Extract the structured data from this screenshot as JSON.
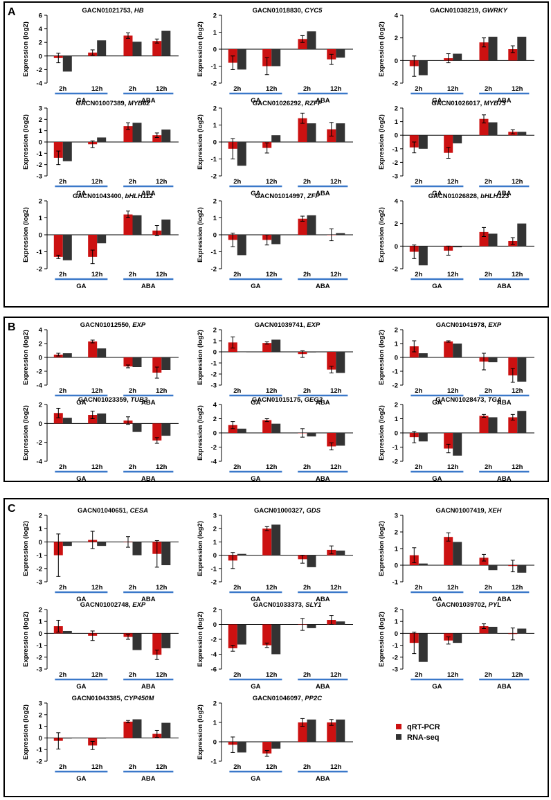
{
  "colors": {
    "qrt": "#cc1111",
    "rna": "#333333",
    "line": "#3a78c9",
    "frame": "#000000"
  },
  "legend": {
    "qrt": "qRT-PCR",
    "rna": "RNA-seq"
  },
  "ylabel": "Expression (log2)",
  "groups": {
    "ga": "GA",
    "aba": "ABA"
  },
  "time_labels": [
    "2h",
    "12h",
    "2h",
    "12h"
  ],
  "panels": [
    {
      "label": "A",
      "row_count": 3
    },
    {
      "label": "B",
      "row_count": 2
    },
    {
      "label": "C",
      "row_count": 3
    }
  ],
  "chart_data": [
    {
      "type": "bar",
      "panel": "A",
      "row": 0,
      "col": 0,
      "id": "GACN01021753",
      "gene": "HB",
      "ylim": [
        -4,
        6
      ],
      "yticks": [
        -4,
        -2,
        0,
        2,
        4,
        6
      ],
      "categories": [
        "GA 2h",
        "GA 12h",
        "ABA 2h",
        "ABA 12h"
      ],
      "series": [
        {
          "name": "qRT-PCR",
          "values": [
            -0.3,
            0.5,
            3,
            2.2
          ],
          "errors": [
            0.7,
            0.4,
            0.4,
            0.3
          ]
        },
        {
          "name": "RNA-seq",
          "values": [
            -2.3,
            2.3,
            2.1,
            3.7
          ]
        }
      ]
    },
    {
      "type": "bar",
      "panel": "A",
      "row": 0,
      "col": 1,
      "id": "GACN01018830",
      "gene": "CYC5",
      "ylim": [
        -2,
        2
      ],
      "yticks": [
        -2,
        -1,
        0,
        1,
        2
      ],
      "categories": [
        "GA 2h",
        "GA 12h",
        "ABA 2h",
        "ABA 12h"
      ],
      "series": [
        {
          "name": "qRT-PCR",
          "values": [
            -0.8,
            -1,
            0.6,
            -0.6
          ],
          "errors": [
            0.4,
            0.5,
            0.2,
            0.3
          ]
        },
        {
          "name": "RNA-seq",
          "values": [
            -1.2,
            -1,
            1.05,
            -0.5
          ]
        }
      ]
    },
    {
      "type": "bar",
      "panel": "A",
      "row": 0,
      "col": 2,
      "id": "GACN01038219",
      "gene": "GWRKY",
      "ylim": [
        -2,
        4
      ],
      "yticks": [
        -2,
        0,
        2,
        4
      ],
      "categories": [
        "GA 2h",
        "GA 12h",
        "ABA 2h",
        "ABA 12h"
      ],
      "series": [
        {
          "name": "qRT-PCR",
          "values": [
            -0.5,
            0.2,
            1.6,
            1
          ],
          "errors": [
            0.9,
            0.4,
            0.4,
            0.3
          ]
        },
        {
          "name": "RNA-seq",
          "values": [
            -1.3,
            0.6,
            2.1,
            2.1
          ]
        }
      ]
    },
    {
      "type": "bar",
      "panel": "A",
      "row": 1,
      "col": 0,
      "id": "GACN01007389",
      "gene": "MYB62",
      "ylim": [
        -3,
        3
      ],
      "yticks": [
        -3,
        -2,
        -1,
        0,
        1,
        2,
        3
      ],
      "categories": [
        "GA 2h",
        "GA 12h",
        "ABA 2h",
        "ABA 12h"
      ],
      "series": [
        {
          "name": "qRT-PCR",
          "values": [
            -1.4,
            -0.2,
            1.4,
            0.6
          ],
          "errors": [
            0.6,
            0.3,
            0.3,
            0.2
          ]
        },
        {
          "name": "RNA-seq",
          "values": [
            -1.7,
            0.4,
            1.7,
            1.1
          ]
        }
      ]
    },
    {
      "type": "bar",
      "panel": "A",
      "row": 1,
      "col": 1,
      "id": "GACN01026292",
      "gene": "RZFP",
      "ylim": [
        -2,
        2
      ],
      "yticks": [
        -2,
        -1,
        0,
        1,
        2
      ],
      "categories": [
        "GA 2h",
        "GA 12h",
        "ABA 2h",
        "ABA 12h"
      ],
      "series": [
        {
          "name": "qRT-PCR",
          "values": [
            -0.4,
            -0.35,
            1.4,
            0.75
          ],
          "errors": [
            0.6,
            0.3,
            0.3,
            0.4
          ]
        },
        {
          "name": "RNA-seq",
          "values": [
            -1.4,
            0.4,
            1.1,
            1.1
          ]
        }
      ]
    },
    {
      "type": "bar",
      "panel": "A",
      "row": 1,
      "col": 2,
      "id": "GACN01026017",
      "gene": "MYB73",
      "ylim": [
        -3,
        2
      ],
      "yticks": [
        -3,
        -2,
        -1,
        0,
        1,
        2
      ],
      "categories": [
        "GA 2h",
        "GA 12h",
        "ABA 2h",
        "ABA 12h"
      ],
      "series": [
        {
          "name": "qRT-PCR",
          "values": [
            -0.9,
            -1.3,
            1.2,
            0.25
          ],
          "errors": [
            0.4,
            0.4,
            0.3,
            0.15
          ]
        },
        {
          "name": "RNA-seq",
          "values": [
            -1,
            -0.6,
            0.95,
            0.25
          ]
        }
      ]
    },
    {
      "type": "bar",
      "panel": "A",
      "row": 2,
      "col": 0,
      "id": "GACN01043400",
      "gene": "bHLH112",
      "ylim": [
        -2,
        2
      ],
      "yticks": [
        -2,
        -1,
        0,
        1,
        2
      ],
      "categories": [
        "GA 2h",
        "GA 12h",
        "ABA 2h",
        "ABA 12h"
      ],
      "series": [
        {
          "name": "qRT-PCR",
          "values": [
            -1.3,
            -1.3,
            1.2,
            0.25
          ],
          "errors": [
            0.1,
            0.4,
            0.2,
            0.3
          ]
        },
        {
          "name": "RNA-seq",
          "values": [
            -1.5,
            -0.5,
            1.15,
            0.9
          ]
        }
      ]
    },
    {
      "type": "bar",
      "panel": "A",
      "row": 2,
      "col": 1,
      "id": "GACN01014997",
      "gene": "ZFP",
      "ylim": [
        -2,
        2
      ],
      "yticks": [
        -2,
        -1,
        0,
        1,
        2
      ],
      "categories": [
        "GA 2h",
        "GA 12h",
        "ABA 2h",
        "ABA 12h"
      ],
      "series": [
        {
          "name": "qRT-PCR",
          "values": [
            -0.3,
            -0.3,
            0.95,
            0
          ],
          "errors": [
            0.4,
            0.3,
            0.15,
            0.35
          ]
        },
        {
          "name": "RNA-seq",
          "values": [
            -1.2,
            -0.55,
            1.15,
            0.1
          ]
        }
      ]
    },
    {
      "type": "bar",
      "panel": "A",
      "row": 2,
      "col": 2,
      "id": "GACN01026828",
      "gene": "bHLH123",
      "ylim": [
        -2,
        4
      ],
      "yticks": [
        -2,
        0,
        2,
        4
      ],
      "categories": [
        "GA 2h",
        "GA 12h",
        "ABA 2h",
        "ABA 12h"
      ],
      "series": [
        {
          "name": "qRT-PCR",
          "values": [
            -0.5,
            -0.4,
            1.25,
            0.45
          ],
          "errors": [
            0.6,
            0.4,
            0.4,
            0.3
          ]
        },
        {
          "name": "RNA-seq",
          "values": [
            -1.7,
            -0.1,
            1.1,
            2
          ]
        }
      ]
    },
    {
      "type": "bar",
      "panel": "B",
      "row": 0,
      "col": 0,
      "id": "GACN01012550",
      "gene": "EXP",
      "ylim": [
        -4,
        4
      ],
      "yticks": [
        -4,
        -2,
        0,
        2,
        4
      ],
      "categories": [
        "GA 2h",
        "GA 12h",
        "ABA 2h",
        "ABA 12h"
      ],
      "series": [
        {
          "name": "qRT-PCR",
          "values": [
            0.4,
            2.3,
            -1.3,
            -2.2
          ],
          "errors": [
            0.2,
            0.2,
            0.2,
            0.8
          ]
        },
        {
          "name": "RNA-seq",
          "values": [
            0.6,
            1.3,
            -1.4,
            -1.8
          ]
        }
      ]
    },
    {
      "type": "bar",
      "panel": "B",
      "row": 0,
      "col": 1,
      "id": "GACN01039741",
      "gene": "EXP",
      "ylim": [
        -3,
        2
      ],
      "yticks": [
        -3,
        -2,
        -1,
        0,
        1,
        2
      ],
      "categories": [
        "GA 2h",
        "GA 12h",
        "ABA 2h",
        "ABA 12h"
      ],
      "series": [
        {
          "name": "qRT-PCR",
          "values": [
            0.85,
            0.8,
            -0.2,
            -1.6
          ],
          "errors": [
            0.5,
            0.1,
            0.3,
            0.3
          ]
        },
        {
          "name": "RNA-seq",
          "values": [
            0,
            1.1,
            -0.05,
            -1.9
          ]
        }
      ]
    },
    {
      "type": "bar",
      "panel": "B",
      "row": 0,
      "col": 2,
      "id": "GACN01041978",
      "gene": "EXP",
      "ylim": [
        -2,
        2
      ],
      "yticks": [
        -2,
        -1,
        0,
        1,
        2
      ],
      "categories": [
        "GA 2h",
        "GA 12h",
        "ABA 2h",
        "ABA 12h"
      ],
      "series": [
        {
          "name": "qRT-PCR",
          "values": [
            0.8,
            1.15,
            -0.3,
            -1.3
          ],
          "errors": [
            0.4,
            0.05,
            0.6,
            0.5
          ]
        },
        {
          "name": "RNA-seq",
          "values": [
            0.3,
            1,
            -0.35,
            -1.75
          ]
        }
      ]
    },
    {
      "type": "bar",
      "panel": "B",
      "row": 1,
      "col": 0,
      "id": "GACN01023359",
      "gene": "TUB2",
      "ylim": [
        -4,
        2
      ],
      "yticks": [
        -4,
        -2,
        0,
        2
      ],
      "categories": [
        "GA 2h",
        "GA 12h",
        "ABA 2h",
        "ABA 12h"
      ],
      "series": [
        {
          "name": "qRT-PCR",
          "values": [
            1.1,
            0.9,
            0.3,
            -1.8
          ],
          "errors": [
            0.5,
            0.4,
            0.4,
            0.3
          ]
        },
        {
          "name": "RNA-seq",
          "values": [
            0.6,
            1.05,
            -0.9,
            -1.3
          ]
        }
      ]
    },
    {
      "type": "bar",
      "panel": "B",
      "row": 1,
      "col": 1,
      "id": "GACN01015175",
      "gene": "GEG2",
      "ylim": [
        -4,
        4
      ],
      "yticks": [
        -4,
        -2,
        0,
        2,
        4
      ],
      "categories": [
        "GA 2h",
        "GA 12h",
        "ABA 2h",
        "ABA 12h"
      ],
      "series": [
        {
          "name": "qRT-PCR",
          "values": [
            1.1,
            1.8,
            0,
            -1.9
          ],
          "errors": [
            0.5,
            0.2,
            0.6,
            0.5
          ]
        },
        {
          "name": "RNA-seq",
          "values": [
            0.6,
            1.3,
            -0.5,
            -1.8
          ]
        }
      ]
    },
    {
      "type": "bar",
      "panel": "B",
      "row": 1,
      "col": 2,
      "id": "GACN01028473",
      "gene": "TGA",
      "ylim": [
        -2,
        2
      ],
      "yticks": [
        -2,
        -1,
        0,
        1,
        2
      ],
      "categories": [
        "GA 2h",
        "GA 12h",
        "ABA 2h",
        "ABA 12h"
      ],
      "series": [
        {
          "name": "qRT-PCR",
          "values": [
            -0.3,
            -1.1,
            1.2,
            1.1
          ],
          "errors": [
            0.4,
            0.3,
            0.1,
            0.2
          ]
        },
        {
          "name": "RNA-seq",
          "values": [
            -0.6,
            -1.6,
            1.1,
            1.55
          ]
        }
      ]
    },
    {
      "type": "bar",
      "panel": "C",
      "row": 0,
      "col": 0,
      "id": "GACN01040651",
      "gene": "CESA",
      "ylim": [
        -3,
        2
      ],
      "yticks": [
        -3,
        -2,
        -1,
        0,
        1,
        2
      ],
      "categories": [
        "GA 2h",
        "GA 12h",
        "ABA 2h",
        "ABA 12h"
      ],
      "series": [
        {
          "name": "qRT-PCR",
          "values": [
            -1,
            0.15,
            0,
            -0.9
          ],
          "errors": [
            1.6,
            0.65,
            0.4,
            1
          ]
        },
        {
          "name": "RNA-seq",
          "values": [
            -0.3,
            -0.3,
            -1,
            -1.75
          ]
        }
      ]
    },
    {
      "type": "bar",
      "panel": "C",
      "row": 0,
      "col": 1,
      "id": "GACN01000327",
      "gene": "GDS",
      "ylim": [
        -2,
        3
      ],
      "yticks": [
        -2,
        -1,
        0,
        1,
        2,
        3
      ],
      "categories": [
        "GA 2h",
        "GA 12h",
        "ABA 2h",
        "ABA 12h"
      ],
      "series": [
        {
          "name": "qRT-PCR",
          "values": [
            -0.4,
            2,
            -0.3,
            0.4
          ],
          "errors": [
            0.6,
            0.15,
            0.3,
            0.3
          ]
        },
        {
          "name": "RNA-seq",
          "values": [
            0.1,
            2.3,
            -0.9,
            0.35
          ]
        }
      ]
    },
    {
      "type": "bar",
      "panel": "C",
      "row": 0,
      "col": 2,
      "id": "GACN01007419",
      "gene": "XEH",
      "ylim": [
        -1,
        3
      ],
      "yticks": [
        -1,
        0,
        1,
        2,
        3
      ],
      "categories": [
        "GA 2h",
        "GA 12h",
        "ABA 2h",
        "ABA 12h"
      ],
      "series": [
        {
          "name": "qRT-PCR",
          "values": [
            0.6,
            1.7,
            0.45,
            -0.05
          ],
          "errors": [
            0.45,
            0.25,
            0.2,
            0.35
          ]
        },
        {
          "name": "RNA-seq",
          "values": [
            0.1,
            1.4,
            -0.3,
            -0.45
          ]
        }
      ]
    },
    {
      "type": "bar",
      "panel": "C",
      "row": 1,
      "col": 0,
      "id": "GACN01002748",
      "gene": "EXP",
      "ylim": [
        -3,
        2
      ],
      "yticks": [
        -3,
        -2,
        -1,
        0,
        1,
        2
      ],
      "categories": [
        "GA 2h",
        "GA 12h",
        "ABA 2h",
        "ABA 12h"
      ],
      "series": [
        {
          "name": "qRT-PCR",
          "values": [
            0.6,
            -0.2,
            -0.3,
            -1.8
          ],
          "errors": [
            0.5,
            0.4,
            0.2,
            0.4
          ]
        },
        {
          "name": "RNA-seq",
          "values": [
            0.2,
            0,
            -1.4,
            -1.25
          ]
        }
      ]
    },
    {
      "type": "bar",
      "panel": "C",
      "row": 1,
      "col": 1,
      "id": "GACN01033373",
      "gene": "SLY1",
      "ylim": [
        -6,
        2
      ],
      "yticks": [
        -6,
        -4,
        -2,
        0,
        2
      ],
      "categories": [
        "GA 2h",
        "GA 12h",
        "ABA 2h",
        "ABA 12h"
      ],
      "series": [
        {
          "name": "qRT-PCR",
          "values": [
            -3.2,
            -2.8,
            0,
            0.6
          ],
          "errors": [
            0.4,
            0.3,
            0.8,
            0.6
          ]
        },
        {
          "name": "RNA-seq",
          "values": [
            -2.7,
            -4,
            -0.5,
            0.4
          ]
        }
      ]
    },
    {
      "type": "bar",
      "panel": "C",
      "row": 1,
      "col": 2,
      "id": "GACN01039702",
      "gene": "PYL",
      "ylim": [
        -3,
        2
      ],
      "yticks": [
        -3,
        -2,
        -1,
        0,
        1,
        2
      ],
      "categories": [
        "GA 2h",
        "GA 12h",
        "ABA 2h",
        "ABA 12h"
      ],
      "series": [
        {
          "name": "qRT-PCR",
          "values": [
            -0.8,
            -0.6,
            0.6,
            -0.05
          ],
          "errors": [
            0.9,
            0.3,
            0.2,
            0.5
          ]
        },
        {
          "name": "RNA-seq",
          "values": [
            -2.4,
            -0.8,
            0.55,
            0.4
          ]
        }
      ]
    },
    {
      "type": "bar",
      "panel": "C",
      "row": 2,
      "col": 0,
      "id": "GACN01043385",
      "gene": "CYP450M",
      "ylim": [
        -2,
        3
      ],
      "yticks": [
        -2,
        -1,
        0,
        1,
        2,
        3
      ],
      "categories": [
        "GA 2h",
        "GA 12h",
        "ABA 2h",
        "ABA 12h"
      ],
      "series": [
        {
          "name": "qRT-PCR",
          "values": [
            -0.25,
            -0.65,
            1.4,
            0.35
          ],
          "errors": [
            0.7,
            0.35,
            0.1,
            0.3
          ]
        },
        {
          "name": "RNA-seq",
          "values": [
            -0.05,
            -0.05,
            1.6,
            1.3
          ]
        }
      ]
    },
    {
      "type": "bar",
      "panel": "C",
      "row": 2,
      "col": 1,
      "id": "GACN01046097",
      "gene": "PP2C",
      "ylim": [
        -1,
        2
      ],
      "yticks": [
        -1,
        0,
        1,
        2
      ],
      "categories": [
        "GA 2h",
        "GA 12h",
        "ABA 2h",
        "ABA 12h"
      ],
      "series": [
        {
          "name": "qRT-PCR",
          "values": [
            -0.15,
            -0.6,
            1,
            1
          ],
          "errors": [
            0.4,
            0.15,
            0.2,
            0.15
          ]
        },
        {
          "name": "RNA-seq",
          "values": [
            -0.55,
            -0.35,
            1.15,
            1.15
          ]
        }
      ]
    }
  ]
}
